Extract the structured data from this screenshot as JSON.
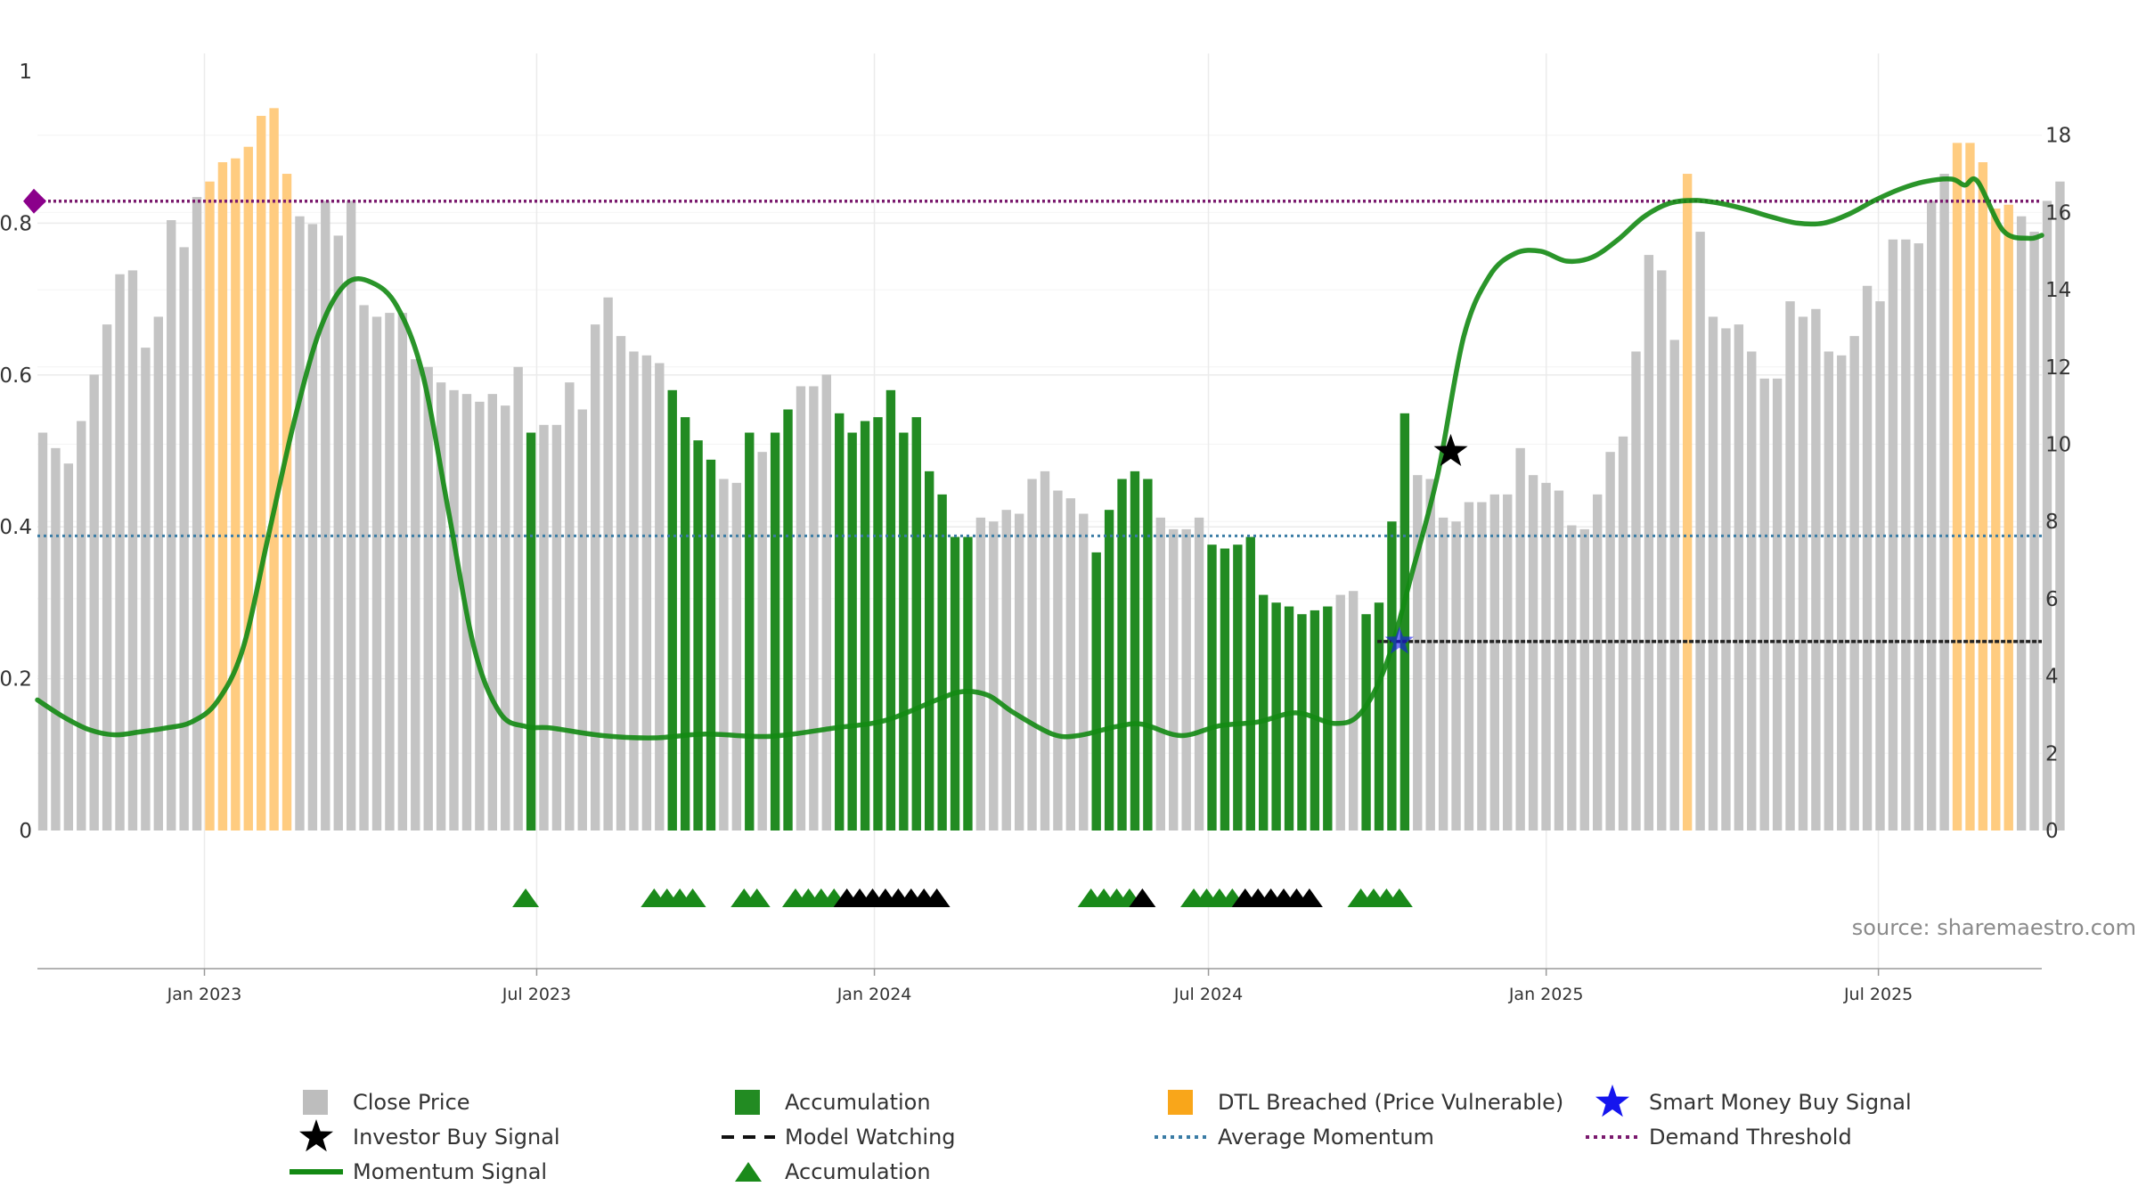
{
  "source_label": "source: sharemaestro.com",
  "chart_data": {
    "type": "bar",
    "title": "",
    "xlabel": "",
    "ylabel": "",
    "x_range": [
      "2022-10-02",
      "2025-09-28"
    ],
    "left_axis": {
      "ticks": [
        0,
        0.2,
        0.4,
        0.6,
        0.8,
        1
      ],
      "labels": [
        "0",
        "0.2",
        "0.4",
        "0.6",
        "0.8",
        "1"
      ],
      "range": [
        0,
        1
      ]
    },
    "right_axis": {
      "ticks": [
        0,
        2,
        4,
        6,
        8,
        10,
        12,
        14,
        16,
        18
      ],
      "labels": [
        "0",
        "2",
        "4",
        "6",
        "8",
        "10",
        "12",
        "14",
        "16",
        "18"
      ],
      "range": [
        0,
        19.7
      ]
    },
    "x_ticks": [
      {
        "date": "2023-01-01",
        "label": "Jan 2023"
      },
      {
        "date": "2023-07-01",
        "label": "Jul 2023"
      },
      {
        "date": "2024-01-01",
        "label": "Jan 2024"
      },
      {
        "date": "2024-07-01",
        "label": "Jul 2024"
      },
      {
        "date": "2025-01-01",
        "label": "Jan 2025"
      },
      {
        "date": "2025-07-01",
        "label": "Jul 2025"
      }
    ],
    "bars_start_date": "2022-10-02",
    "bars_interval_days": 7,
    "close_price": [
      10.3,
      9.9,
      9.5,
      10.6,
      11.8,
      13.1,
      14.4,
      14.5,
      12.5,
      13.3,
      15.8,
      15.1,
      16.4,
      16.8,
      17.3,
      17.4,
      17.7,
      18.5,
      18.7,
      17.0,
      15.9,
      15.7,
      16.3,
      15.4,
      16.3,
      13.6,
      13.3,
      13.4,
      13.4,
      12.2,
      12.0,
      11.6,
      11.4,
      11.3,
      11.1,
      11.3,
      11.0,
      12.0,
      10.3,
      10.5,
      10.5,
      11.6,
      10.9,
      13.1,
      13.8,
      12.8,
      12.4,
      12.3,
      12.1,
      11.4,
      10.7,
      10.1,
      9.6,
      9.1,
      9.0,
      10.3,
      9.8,
      10.3,
      10.9,
      11.5,
      11.5,
      11.8,
      10.8,
      10.3,
      10.6,
      10.7,
      11.4,
      10.3,
      10.7,
      9.3,
      8.7,
      7.6,
      7.6,
      8.1,
      8.0,
      8.3,
      8.2,
      9.1,
      9.3,
      8.8,
      8.6,
      8.2,
      7.2,
      8.3,
      9.1,
      9.3,
      9.1,
      8.1,
      7.8,
      7.8,
      8.1,
      7.4,
      7.3,
      7.4,
      7.6,
      6.1,
      5.9,
      5.8,
      5.6,
      5.7,
      5.8,
      6.1,
      6.2,
      5.6,
      5.9,
      8.0,
      10.8,
      9.2,
      9.1,
      8.1,
      8.0,
      8.5,
      8.5,
      8.7,
      8.7,
      9.9,
      9.2,
      9.0,
      8.8,
      7.9,
      7.8,
      8.7,
      9.8,
      10.2,
      12.4,
      14.9,
      14.5,
      12.7,
      17.0,
      15.5,
      13.3,
      13.0,
      13.1,
      12.4,
      11.7,
      11.7,
      13.7,
      13.3,
      13.5,
      12.4,
      12.3,
      12.8,
      14.1,
      13.7,
      15.3,
      15.3,
      15.2,
      16.3,
      17.0,
      17.8,
      17.8,
      17.3,
      16.1,
      16.2,
      15.9,
      15.5,
      16.3,
      16.8
    ],
    "bar_category": [
      "c",
      "c",
      "c",
      "c",
      "c",
      "c",
      "c",
      "c",
      "c",
      "c",
      "c",
      "c",
      "c",
      "d",
      "d",
      "d",
      "d",
      "d",
      "d",
      "d",
      "c",
      "c",
      "c",
      "c",
      "c",
      "c",
      "c",
      "c",
      "c",
      "c",
      "c",
      "c",
      "c",
      "c",
      "c",
      "c",
      "c",
      "c",
      "a",
      "c",
      "c",
      "c",
      "c",
      "c",
      "c",
      "c",
      "c",
      "c",
      "c",
      "a",
      "a",
      "a",
      "a",
      "c",
      "c",
      "a",
      "c",
      "a",
      "a",
      "c",
      "c",
      "c",
      "a",
      "a",
      "a",
      "a",
      "a",
      "a",
      "a",
      "a",
      "a",
      "a",
      "a",
      "c",
      "c",
      "c",
      "c",
      "c",
      "c",
      "c",
      "c",
      "c",
      "a",
      "a",
      "a",
      "a",
      "a",
      "c",
      "c",
      "c",
      "c",
      "a",
      "a",
      "a",
      "a",
      "a",
      "a",
      "a",
      "a",
      "a",
      "a",
      "c",
      "c",
      "a",
      "a",
      "a",
      "a",
      "c",
      "c",
      "c",
      "c",
      "c",
      "c",
      "c",
      "c",
      "c",
      "c",
      "c",
      "c",
      "c",
      "c",
      "c",
      "c",
      "c",
      "c",
      "c",
      "c",
      "c",
      "d",
      "c",
      "c",
      "c",
      "c",
      "c",
      "c",
      "c",
      "c",
      "c",
      "c",
      "c",
      "c",
      "c",
      "c",
      "c",
      "c",
      "c",
      "c",
      "c",
      "c",
      "d",
      "d",
      "d",
      "d",
      "d",
      "c",
      "c",
      "c",
      "c",
      "d"
    ],
    "momentum_signal": {
      "comment_units": "left axis",
      "points": [
        [
          "2022-10-02",
          0.172
        ],
        [
          "2022-10-16",
          0.15
        ],
        [
          "2022-10-30",
          0.133
        ],
        [
          "2022-11-13",
          0.126
        ],
        [
          "2022-11-27",
          0.13
        ],
        [
          "2022-12-11",
          0.135
        ],
        [
          "2022-12-25",
          0.143
        ],
        [
          "2023-01-08",
          0.17
        ],
        [
          "2023-01-22",
          0.24
        ],
        [
          "2023-02-05",
          0.39
        ],
        [
          "2023-02-19",
          0.54
        ],
        [
          "2023-03-05",
          0.66
        ],
        [
          "2023-03-19",
          0.72
        ],
        [
          "2023-04-02",
          0.722
        ],
        [
          "2023-04-16",
          0.69
        ],
        [
          "2023-04-30",
          0.6
        ],
        [
          "2023-05-14",
          0.42
        ],
        [
          "2023-05-28",
          0.24
        ],
        [
          "2023-06-11",
          0.155
        ],
        [
          "2023-06-25",
          0.137
        ],
        [
          "2023-07-09",
          0.135
        ],
        [
          "2023-08-06",
          0.125
        ],
        [
          "2023-09-03",
          0.122
        ],
        [
          "2023-10-01",
          0.127
        ],
        [
          "2023-11-05",
          0.124
        ],
        [
          "2023-12-10",
          0.135
        ],
        [
          "2024-01-07",
          0.145
        ],
        [
          "2024-02-04",
          0.172
        ],
        [
          "2024-02-18",
          0.183
        ],
        [
          "2024-03-03",
          0.178
        ],
        [
          "2024-03-17",
          0.155
        ],
        [
          "2024-04-07",
          0.127
        ],
        [
          "2024-04-21",
          0.125
        ],
        [
          "2024-05-12",
          0.137
        ],
        [
          "2024-05-26",
          0.14
        ],
        [
          "2024-06-16",
          0.125
        ],
        [
          "2024-07-07",
          0.138
        ],
        [
          "2024-07-28",
          0.143
        ],
        [
          "2024-08-18",
          0.155
        ],
        [
          "2024-09-08",
          0.141
        ],
        [
          "2024-09-22",
          0.155
        ],
        [
          "2024-10-06",
          0.22
        ],
        [
          "2024-10-20",
          0.34
        ],
        [
          "2024-11-03",
          0.47
        ],
        [
          "2024-11-17",
          0.65
        ],
        [
          "2024-12-01",
          0.73
        ],
        [
          "2024-12-15",
          0.76
        ],
        [
          "2024-12-29",
          0.763
        ],
        [
          "2025-01-12",
          0.75
        ],
        [
          "2025-01-26",
          0.755
        ],
        [
          "2025-02-09",
          0.778
        ],
        [
          "2025-02-23",
          0.808
        ],
        [
          "2025-03-09",
          0.826
        ],
        [
          "2025-03-23",
          0.83
        ],
        [
          "2025-04-06",
          0.826
        ],
        [
          "2025-04-20",
          0.818
        ],
        [
          "2025-05-04",
          0.808
        ],
        [
          "2025-05-18",
          0.8
        ],
        [
          "2025-06-01",
          0.8
        ],
        [
          "2025-06-15",
          0.812
        ],
        [
          "2025-06-29",
          0.83
        ],
        [
          "2025-07-13",
          0.845
        ],
        [
          "2025-07-27",
          0.855
        ],
        [
          "2025-08-10",
          0.858
        ],
        [
          "2025-08-17",
          0.85
        ],
        [
          "2025-08-24",
          0.855
        ],
        [
          "2025-09-07",
          0.79
        ],
        [
          "2025-09-21",
          0.78
        ],
        [
          "2025-09-28",
          0.784
        ]
      ]
    },
    "average_momentum": 0.388,
    "demand_threshold": 0.829,
    "model_watching": {
      "start": "2024-10-01",
      "end": "2025-09-28",
      "value": 0.249
    },
    "smart_money_buy_signal": {
      "date": "2024-10-13",
      "value": 0.249
    },
    "investor_buy_signal": {
      "date": "2024-11-10",
      "value": 0.499
    },
    "triangle_markers": [
      {
        "date": "2023-06-25",
        "color": "green"
      },
      {
        "date": "2023-09-03",
        "color": "green"
      },
      {
        "date": "2023-09-10",
        "color": "green"
      },
      {
        "date": "2023-09-17",
        "color": "green"
      },
      {
        "date": "2023-09-24",
        "color": "green"
      },
      {
        "date": "2023-10-22",
        "color": "green"
      },
      {
        "date": "2023-10-29",
        "color": "green"
      },
      {
        "date": "2023-11-19",
        "color": "green"
      },
      {
        "date": "2023-11-26",
        "color": "green"
      },
      {
        "date": "2023-12-03",
        "color": "green"
      },
      {
        "date": "2023-12-10",
        "color": "green"
      },
      {
        "date": "2023-12-17",
        "color": "black"
      },
      {
        "date": "2023-12-24",
        "color": "black"
      },
      {
        "date": "2023-12-31",
        "color": "black"
      },
      {
        "date": "2024-01-07",
        "color": "black"
      },
      {
        "date": "2024-01-14",
        "color": "black"
      },
      {
        "date": "2024-01-21",
        "color": "black"
      },
      {
        "date": "2024-01-28",
        "color": "black"
      },
      {
        "date": "2024-02-04",
        "color": "black"
      },
      {
        "date": "2024-04-28",
        "color": "green"
      },
      {
        "date": "2024-05-05",
        "color": "green"
      },
      {
        "date": "2024-05-12",
        "color": "green"
      },
      {
        "date": "2024-05-19",
        "color": "green"
      },
      {
        "date": "2024-05-26",
        "color": "black"
      },
      {
        "date": "2024-06-23",
        "color": "green"
      },
      {
        "date": "2024-06-30",
        "color": "green"
      },
      {
        "date": "2024-07-07",
        "color": "green"
      },
      {
        "date": "2024-07-14",
        "color": "green"
      },
      {
        "date": "2024-07-21",
        "color": "black"
      },
      {
        "date": "2024-07-28",
        "color": "black"
      },
      {
        "date": "2024-08-04",
        "color": "black"
      },
      {
        "date": "2024-08-11",
        "color": "black"
      },
      {
        "date": "2024-08-18",
        "color": "black"
      },
      {
        "date": "2024-08-25",
        "color": "black"
      },
      {
        "date": "2024-09-22",
        "color": "green"
      },
      {
        "date": "2024-09-29",
        "color": "green"
      },
      {
        "date": "2024-10-06",
        "color": "green"
      },
      {
        "date": "2024-10-13",
        "color": "green"
      }
    ],
    "colors": {
      "close_price": "#c4c4c4",
      "accumulation": "#228b22",
      "dtl_breached": "#ffcc80",
      "momentum": "#138913",
      "average_momentum": "#3a7ca5",
      "demand_threshold": "#7a1a6e",
      "model_watching": "#222222",
      "smart_money": "#1515ee",
      "investor": "#000000",
      "triangle_green": "#1a8a1a",
      "triangle_black": "#000000",
      "grid": "#ebebeb",
      "axis": "#9a9a9a"
    },
    "legend": [
      {
        "label": "Close Price",
        "symbol": "square",
        "color": "#bdbdbd"
      },
      {
        "label": "Accumulation",
        "symbol": "square",
        "color": "#228b22"
      },
      {
        "label": "DTL Breached (Price Vulnerable)",
        "symbol": "square",
        "color": "#f9a61a"
      },
      {
        "label": "Smart Money Buy Signal",
        "symbol": "star",
        "color": "#1515ee"
      },
      {
        "label": "Investor Buy Signal",
        "symbol": "star",
        "color": "#000000"
      },
      {
        "label": "Model Watching",
        "symbol": "dash",
        "color": "#111111"
      },
      {
        "label": "Average Momentum",
        "symbol": "dot",
        "color": "#3a7ca5"
      },
      {
        "label": "Demand Threshold",
        "symbol": "dot",
        "color": "#7a1a6e"
      },
      {
        "label": "Momentum Signal",
        "symbol": "line",
        "color": "#138913"
      },
      {
        "label": "Accumulation",
        "symbol": "triangle",
        "color": "#1a8a1a"
      }
    ],
    "legend_placement": "bottom",
    "grid": true
  }
}
